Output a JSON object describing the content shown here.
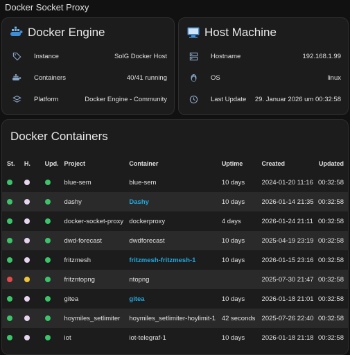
{
  "page": {
    "title": "Docker Socket Proxy"
  },
  "docker_card": {
    "title": "Docker Engine",
    "rows": [
      {
        "icon": "tag-icon",
        "label": "Instance",
        "value": "SolG Docker Host"
      },
      {
        "icon": "docker-icon",
        "label": "Containers",
        "value": "40/41 running"
      },
      {
        "icon": "layers-icon",
        "label": "Platform",
        "value": "Docker Engine - Community"
      }
    ]
  },
  "host_card": {
    "title": "Host Machine",
    "rows": [
      {
        "icon": "server-icon",
        "label": "Hostname",
        "value": "192.168.1.99"
      },
      {
        "icon": "linux-icon",
        "label": "OS",
        "value": "linux"
      },
      {
        "icon": "clock-icon",
        "label": "Last Update",
        "value": "29. Januar 2026 um 00:32:58"
      }
    ]
  },
  "containers_card": {
    "title": "Docker Containers",
    "columns": {
      "st": "St.",
      "h": "H.",
      "upd": "Upd.",
      "project": "Project",
      "container": "Container",
      "uptime": "Uptime",
      "created": "Created",
      "updated": "Updated"
    },
    "rows": [
      {
        "st": "#3cc46a",
        "h": "#e7d5ef",
        "upd": "#3cc46a",
        "project": "blue-sem",
        "container": "blue-sem",
        "link": false,
        "uptime": "10 days",
        "created": "2024-01-20 11:16",
        "updated": "00:32:58"
      },
      {
        "st": "#3cc46a",
        "h": "#e7d5ef",
        "upd": "#3cc46a",
        "project": "dashy",
        "container": "Dashy",
        "link": true,
        "uptime": "10 days",
        "created": "2026-01-14 21:35",
        "updated": "00:32:58"
      },
      {
        "st": "#3cc46a",
        "h": "#e7d5ef",
        "upd": "#3cc46a",
        "project": "docker-socket-proxy",
        "container": "dockerproxy",
        "link": false,
        "uptime": "4 days",
        "created": "2026-01-24 21:11",
        "updated": "00:32:58"
      },
      {
        "st": "#3cc46a",
        "h": "#e7d5ef",
        "upd": "#3cc46a",
        "project": "dwd-forecast",
        "container": "dwdforecast",
        "link": false,
        "uptime": "10 days",
        "created": "2025-04-19 23:19",
        "updated": "00:32:58"
      },
      {
        "st": "#3cc46a",
        "h": "#e7d5ef",
        "upd": "#3cc46a",
        "project": "fritzmesh",
        "container": "fritzmesh-fritzmesh-1",
        "link": true,
        "uptime": "10 days",
        "created": "2026-01-15 23:16",
        "updated": "00:32:58"
      },
      {
        "st": "#e34a4a",
        "h": "#f0c53a",
        "upd": "#3cc46a",
        "project": "fritzntopng",
        "container": "ntopng",
        "link": false,
        "uptime": "",
        "created": "2025-07-30 21:47",
        "updated": "00:32:58"
      },
      {
        "st": "#3cc46a",
        "h": "#e7d5ef",
        "upd": "#3cc46a",
        "project": "gitea",
        "container": "gitea",
        "link": true,
        "uptime": "10 days",
        "created": "2026-01-18 21:01",
        "updated": "00:32:58"
      },
      {
        "st": "#3cc46a",
        "h": "#e7d5ef",
        "upd": "#3cc46a",
        "project": "hoymiles_setlimiter",
        "container": "hoymiles_setlimiter-hoylimit-1",
        "link": false,
        "uptime": "42 seconds",
        "created": "2025-07-26 22:40",
        "updated": "00:32:58"
      },
      {
        "st": "#3cc46a",
        "h": "#e7d5ef",
        "upd": "#3cc46a",
        "project": "iot",
        "container": "iot-telegraf-1",
        "link": false,
        "uptime": "10 days",
        "created": "2026-01-18 21:18",
        "updated": "00:32:58"
      }
    ]
  }
}
